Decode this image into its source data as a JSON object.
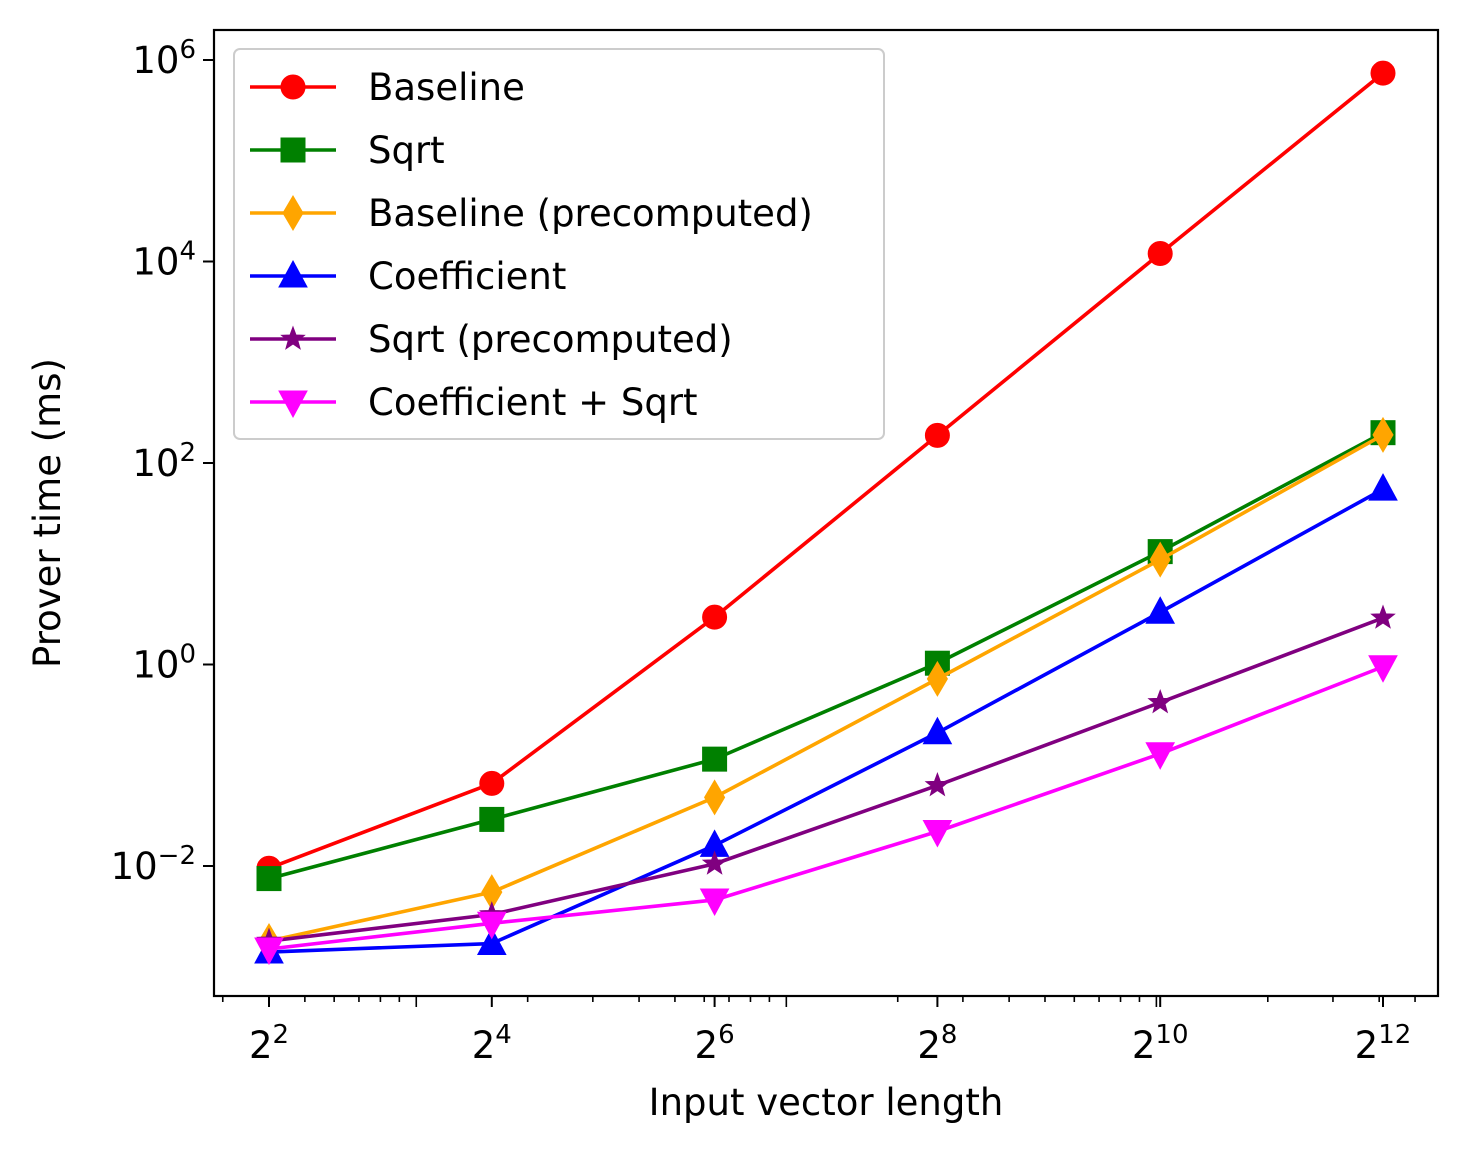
{
  "chart_data": {
    "type": "line",
    "xlabel": "Input vector length",
    "ylabel": "Prover time (ms)",
    "xscale": "log2",
    "yscale": "log10",
    "x": [
      4,
      16,
      64,
      256,
      1024,
      4096
    ],
    "x_tick_labels": [
      {
        "base": "2",
        "exp": "2"
      },
      {
        "base": "2",
        "exp": "4"
      },
      {
        "base": "2",
        "exp": "6"
      },
      {
        "base": "2",
        "exp": "8"
      },
      {
        "base": "2",
        "exp": "10"
      },
      {
        "base": "2",
        "exp": "12"
      }
    ],
    "y_tick_labels": [
      {
        "base": "10",
        "exp": "−2"
      },
      {
        "base": "10",
        "exp": "0"
      },
      {
        "base": "10",
        "exp": "2"
      },
      {
        "base": "10",
        "exp": "4"
      },
      {
        "base": "10",
        "exp": "6"
      }
    ],
    "legend_position": "upper-left",
    "grid": false,
    "series": [
      {
        "name": "Baseline",
        "color": "#ff0000",
        "marker": "circle",
        "values": [
          0.0095,
          0.066,
          2.95,
          188,
          12000,
          740000
        ]
      },
      {
        "name": "Sqrt",
        "color": "#008000",
        "marker": "square",
        "values": [
          0.0075,
          0.029,
          0.115,
          1.03,
          13.2,
          200
        ]
      },
      {
        "name": "Baseline (precomputed)",
        "color": "#ffa500",
        "marker": "thin-diamond",
        "values": [
          0.0018,
          0.0055,
          0.048,
          0.72,
          11.0,
          190
        ]
      },
      {
        "name": "Coefficient",
        "color": "#0000ff",
        "marker": "triangle-up",
        "values": [
          0.0014,
          0.0017,
          0.016,
          0.21,
          3.3,
          55
        ]
      },
      {
        "name": "Sqrt (precomputed)",
        "color": "#800080",
        "marker": "star",
        "values": [
          0.0018,
          0.0033,
          0.0105,
          0.063,
          0.42,
          2.9
        ]
      },
      {
        "name": "Coefficient + Sqrt",
        "color": "#ff00ff",
        "marker": "triangle-down",
        "values": [
          0.0015,
          0.0027,
          0.0046,
          0.022,
          0.13,
          0.95
        ]
      }
    ]
  }
}
